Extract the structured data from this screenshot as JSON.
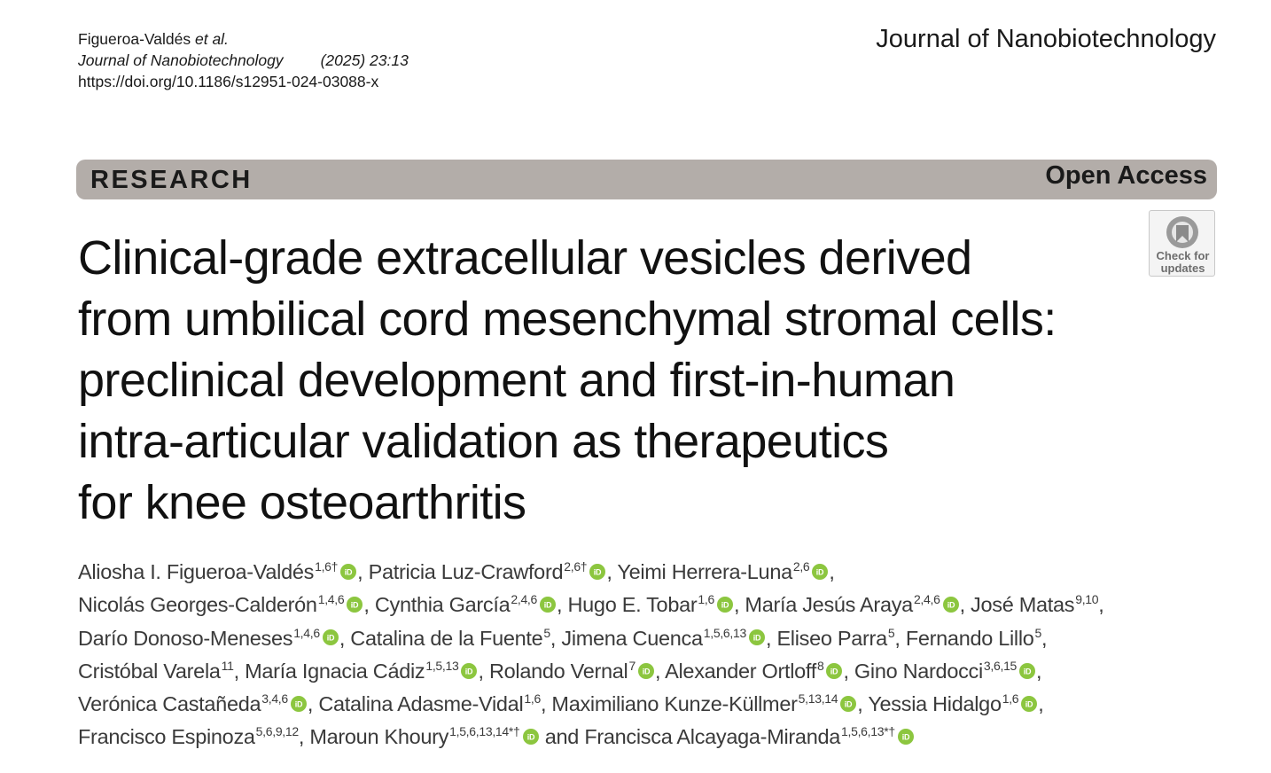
{
  "header": {
    "author_short": "Figueroa-Valdés",
    "et_al": "et al.",
    "journal_italic": "Journal of Nanobiotechnology",
    "year_volume": "(2025) 23:13",
    "doi": "https://doi.org/10.1186/s12951-024-03088-x",
    "journal_name": "Journal of Nanobiotechnology"
  },
  "banner": {
    "article_type": "RESEARCH",
    "access": "Open Access",
    "bg_color": "#b3ada9"
  },
  "check_updates": {
    "line1": "Check for",
    "line2": "updates",
    "icon": "crossmark-icon"
  },
  "title_lines": [
    "Clinical-grade extracellular vesicles derived",
    "from umbilical cord mesenchymal stromal cells:",
    "preclinical development and first-in-human",
    "intra-articular validation as therapeutics",
    "for knee osteoarthritis"
  ],
  "orcid_color": "#8cc63f",
  "author_lines": [
    [
      {
        "name": "Aliosha I. Figueroa-Valdés",
        "sup": "1,6†",
        "orcid": true,
        "sep": ", "
      },
      {
        "name": "Patricia Luz-Crawford",
        "sup": "2,6†",
        "orcid": true,
        "sep": ", "
      },
      {
        "name": "Yeimi Herrera-Luna",
        "sup": "2,6",
        "orcid": true,
        "sep": ","
      }
    ],
    [
      {
        "name": "Nicolás Georges-Calderón",
        "sup": "1,4,6",
        "orcid": true,
        "sep": ", "
      },
      {
        "name": "Cynthia García",
        "sup": "2,4,6",
        "orcid": true,
        "sep": ", "
      },
      {
        "name": "Hugo E. Tobar",
        "sup": "1,6",
        "orcid": true,
        "sep": ", "
      },
      {
        "name": "María Jesús Araya",
        "sup": "2,4,6",
        "orcid": true,
        "sep": ", "
      },
      {
        "name": "José Matas",
        "sup": "9,10",
        "orcid": false,
        "sep": ","
      }
    ],
    [
      {
        "name": "Darío Donoso-Meneses",
        "sup": "1,4,6",
        "orcid": true,
        "sep": ", "
      },
      {
        "name": "Catalina de la Fuente",
        "sup": "5",
        "orcid": false,
        "sep": ", "
      },
      {
        "name": "Jimena Cuenca",
        "sup": "1,5,6,13",
        "orcid": true,
        "sep": ", "
      },
      {
        "name": "Eliseo Parra",
        "sup": "5",
        "orcid": false,
        "sep": ", "
      },
      {
        "name": "Fernando Lillo",
        "sup": "5",
        "orcid": false,
        "sep": ","
      }
    ],
    [
      {
        "name": "Cristóbal Varela",
        "sup": "11",
        "orcid": false,
        "sep": ", "
      },
      {
        "name": "María Ignacia Cádiz",
        "sup": "1,5,13",
        "orcid": true,
        "sep": ", "
      },
      {
        "name": "Rolando Vernal",
        "sup": "7",
        "orcid": true,
        "sep": ", "
      },
      {
        "name": "Alexander Ortloff",
        "sup": "8",
        "orcid": true,
        "sep": ", "
      },
      {
        "name": "Gino Nardocci",
        "sup": "3,6,15",
        "orcid": true,
        "sep": ","
      }
    ],
    [
      {
        "name": "Verónica Castañeda",
        "sup": "3,4,6",
        "orcid": true,
        "sep": ", "
      },
      {
        "name": "Catalina Adasme-Vidal",
        "sup": "1,6",
        "orcid": false,
        "sep": ", "
      },
      {
        "name": "Maximiliano Kunze-Küllmer",
        "sup": "5,13,14",
        "orcid": true,
        "sep": ", "
      },
      {
        "name": "Yessia Hidalgo",
        "sup": "1,6",
        "orcid": true,
        "sep": ","
      }
    ],
    [
      {
        "name": "Francisco Espinoza",
        "sup": "5,6,9,12",
        "orcid": false,
        "sep": ", "
      },
      {
        "name": "Maroun Khoury",
        "sup": "1,5,6,13,14*†",
        "orcid": true,
        "sep": " and "
      },
      {
        "name": "Francisca Alcayaga-Miranda",
        "sup": "1,5,6,13*†",
        "orcid": true,
        "sep": ""
      }
    ]
  ]
}
